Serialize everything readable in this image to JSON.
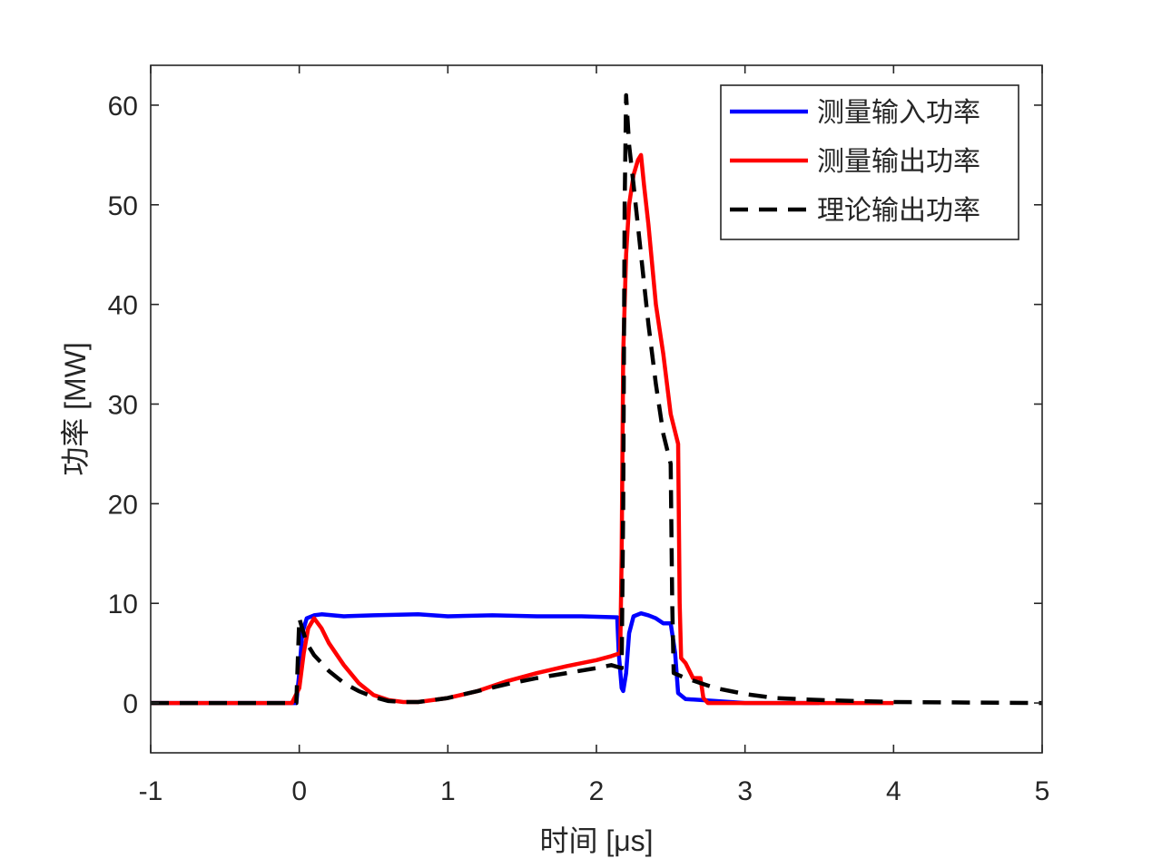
{
  "chart_data": {
    "type": "line",
    "title": "",
    "xlabel": "时间 [μs]",
    "ylabel": "功率 [MW]",
    "xlim": [
      -1,
      5
    ],
    "ylim": [
      -5,
      64
    ],
    "xticks": [
      -1,
      0,
      1,
      2,
      3,
      4,
      5
    ],
    "yticks": [
      0,
      10,
      20,
      30,
      40,
      50,
      60
    ],
    "grid": false,
    "legend_position": "top-right",
    "series": [
      {
        "name": "测量输入功率",
        "color": "#0000ff",
        "style": "solid",
        "x": [
          -1.0,
          -0.5,
          -0.02,
          0.0,
          0.02,
          0.05,
          0.1,
          0.15,
          0.3,
          0.5,
          0.8,
          1.0,
          1.3,
          1.6,
          1.9,
          2.14,
          2.15,
          2.17,
          2.18,
          2.2,
          2.22,
          2.25,
          2.3,
          2.35,
          2.4,
          2.45,
          2.5,
          2.53,
          2.55,
          2.6,
          2.7,
          3.0,
          3.5
        ],
        "y": [
          0,
          0,
          0,
          3,
          7,
          8.5,
          8.8,
          8.9,
          8.7,
          8.8,
          8.9,
          8.7,
          8.8,
          8.7,
          8.7,
          8.6,
          5.0,
          1.5,
          1.2,
          3.0,
          7.0,
          8.7,
          9.0,
          8.8,
          8.5,
          8.0,
          8.0,
          5.0,
          1.0,
          0.4,
          0.3,
          0.0,
          0.0
        ]
      },
      {
        "name": "测量输出功率",
        "color": "#ff0000",
        "style": "solid",
        "x": [
          -1.0,
          -0.5,
          -0.05,
          0.0,
          0.03,
          0.06,
          0.1,
          0.15,
          0.2,
          0.3,
          0.4,
          0.5,
          0.6,
          0.7,
          0.8,
          1.0,
          1.2,
          1.4,
          1.6,
          1.8,
          2.0,
          2.1,
          2.16,
          2.17,
          2.18,
          2.2,
          2.22,
          2.25,
          2.28,
          2.3,
          2.32,
          2.35,
          2.4,
          2.45,
          2.5,
          2.55,
          2.56,
          2.57,
          2.6,
          2.65,
          2.7,
          2.72,
          2.75,
          3.0,
          3.5,
          4.0
        ],
        "y": [
          0,
          0,
          0,
          1.5,
          5.0,
          7.5,
          8.5,
          7.5,
          6.0,
          3.8,
          2.0,
          0.8,
          0.3,
          0.1,
          0.1,
          0.5,
          1.2,
          2.2,
          3.0,
          3.7,
          4.3,
          4.7,
          5.0,
          15.0,
          35.0,
          45.0,
          50.0,
          53.0,
          54.5,
          55.0,
          52.0,
          48.0,
          40.0,
          35.0,
          29.0,
          26.0,
          10.0,
          4.5,
          4.0,
          2.5,
          2.5,
          0.5,
          0.0,
          0.0,
          0.0,
          0.0
        ]
      },
      {
        "name": "理论输出功率",
        "color": "#000000",
        "style": "dashed",
        "x": [
          -1.0,
          -0.5,
          -0.02,
          0.0,
          0.02,
          0.05,
          0.1,
          0.2,
          0.3,
          0.4,
          0.5,
          0.6,
          0.7,
          0.8,
          1.0,
          1.2,
          1.4,
          1.6,
          1.8,
          2.0,
          2.1,
          2.17,
          2.18,
          2.19,
          2.2,
          2.22,
          2.25,
          2.3,
          2.35,
          2.4,
          2.45,
          2.5,
          2.51,
          2.52,
          2.6,
          2.7,
          2.8,
          3.0,
          3.2,
          3.5,
          4.0,
          5.0
        ],
        "y": [
          0,
          0,
          0,
          8.5,
          7.5,
          6.0,
          4.8,
          3.2,
          2.0,
          1.2,
          0.6,
          0.2,
          0.1,
          0.1,
          0.5,
          1.2,
          1.9,
          2.5,
          3.0,
          3.5,
          3.8,
          3.5,
          20.0,
          50.0,
          61.0,
          56.0,
          52.0,
          45.0,
          38.0,
          32.0,
          27.0,
          24.0,
          10.0,
          3.0,
          2.5,
          2.0,
          1.5,
          0.9,
          0.5,
          0.3,
          0.1,
          0.0
        ]
      }
    ]
  }
}
